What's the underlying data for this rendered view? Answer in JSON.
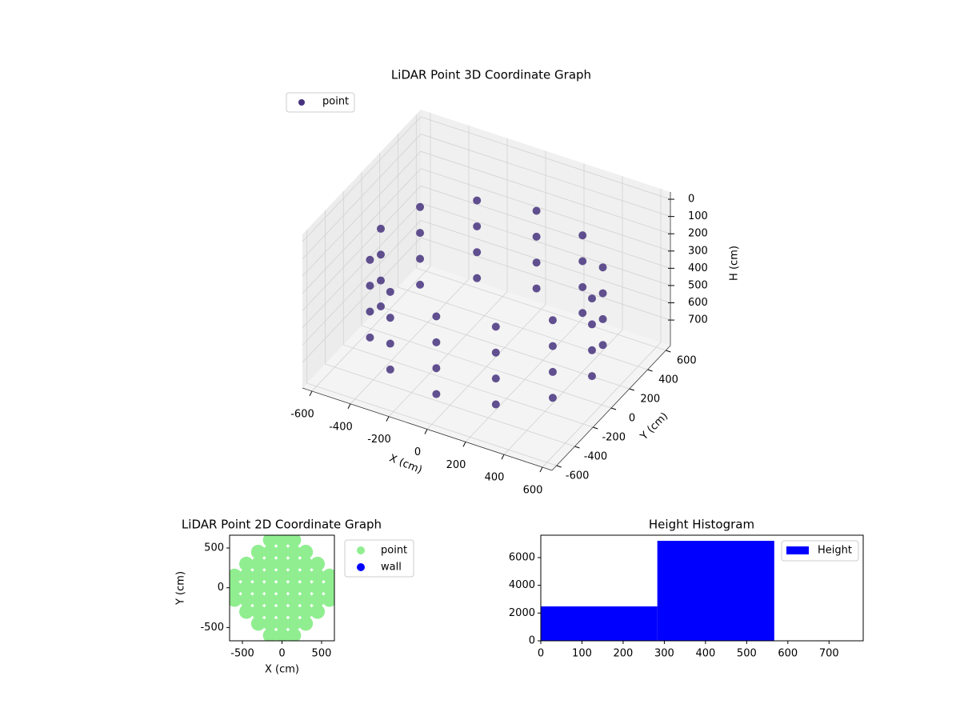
{
  "chart_data": [
    {
      "type": "scatter3d",
      "title": "LiDAR Point 3D Coordinate Graph",
      "xlabel": "X (cm)",
      "ylabel": "Y (cm)",
      "zlabel": "H (cm)",
      "xlim": [
        -650,
        650
      ],
      "ylim": [
        -650,
        650
      ],
      "zlim": [
        -42,
        848
      ],
      "zaxis_inverted": true,
      "xticks": [
        -600,
        -400,
        -200,
        0,
        200,
        400,
        600
      ],
      "yticks": [
        -600,
        -400,
        -200,
        0,
        200,
        400,
        600
      ],
      "zticks": [
        0,
        100,
        200,
        300,
        400,
        500,
        600,
        700
      ],
      "grid": true,
      "legend": "upper left",
      "series": [
        {
          "name": "point",
          "color": "#46327e",
          "x": [
            550,
            476,
            275,
            0,
            -275,
            -476,
            -550,
            -476,
            -275,
            0,
            275,
            476,
            550,
            476,
            275,
            0,
            -275,
            -476,
            -550,
            -476,
            -275,
            0,
            275,
            476,
            550,
            476,
            275,
            0,
            -275,
            -476,
            -550,
            -476,
            -275,
            0,
            275,
            476,
            550,
            476,
            275,
            0,
            -275,
            -476,
            -550,
            -476,
            -275,
            0,
            275,
            476
          ],
          "y": [
            0,
            275,
            476,
            550,
            476,
            275,
            0,
            -275,
            -476,
            -550,
            -476,
            -275,
            0,
            275,
            476,
            550,
            476,
            275,
            0,
            -275,
            -476,
            -550,
            -476,
            -275,
            0,
            275,
            476,
            550,
            476,
            275,
            0,
            -275,
            -476,
            -550,
            -476,
            -275,
            0,
            275,
            476,
            550,
            476,
            275,
            0,
            -275,
            -476,
            -550,
            -476,
            -275
          ],
          "z": [
            250,
            250,
            250,
            250,
            250,
            250,
            250,
            250,
            250,
            250,
            250,
            250,
            400,
            400,
            400,
            400,
            400,
            400,
            400,
            400,
            400,
            400,
            400,
            400,
            550,
            550,
            550,
            550,
            550,
            550,
            550,
            550,
            550,
            550,
            550,
            550,
            700,
            700,
            700,
            700,
            700,
            700,
            700,
            700,
            700,
            700,
            700,
            700
          ]
        }
      ]
    },
    {
      "type": "scatter",
      "title": "LiDAR Point 2D Coordinate Graph",
      "xlabel": "X (cm)",
      "ylabel": "Y (cm)",
      "xlim": [
        -662,
        662
      ],
      "ylim": [
        -667,
        661
      ],
      "xticks": [
        -500,
        0,
        500
      ],
      "yticks": [
        -500,
        0,
        500
      ],
      "legend": "outside right",
      "series": [
        {
          "name": "point",
          "color": "#90ee90",
          "x": [
            -600,
            -600,
            -600,
            -450,
            -450,
            -450,
            -450,
            -450,
            -300,
            -300,
            -300,
            -300,
            -300,
            -300,
            -300,
            -150,
            -150,
            -150,
            -150,
            -150,
            -150,
            -150,
            -150,
            -150,
            0,
            0,
            0,
            0,
            0,
            0,
            0,
            0,
            0,
            150,
            150,
            150,
            150,
            150,
            150,
            150,
            150,
            150,
            300,
            300,
            300,
            300,
            300,
            300,
            300,
            450,
            450,
            450,
            450,
            450,
            600,
            600,
            600
          ],
          "y": [
            -150,
            0,
            150,
            -300,
            -150,
            0,
            150,
            300,
            -450,
            -300,
            -150,
            0,
            150,
            300,
            450,
            -600,
            -450,
            -300,
            -150,
            0,
            150,
            300,
            450,
            600,
            -600,
            -450,
            -300,
            -150,
            0,
            150,
            300,
            450,
            600,
            -600,
            -450,
            -300,
            -150,
            0,
            150,
            300,
            450,
            600,
            -450,
            -300,
            -150,
            0,
            150,
            300,
            450,
            -300,
            -150,
            0,
            150,
            300,
            -150,
            0,
            150
          ]
        },
        {
          "name": "wall",
          "color": "#0000ff",
          "x": [],
          "y": []
        }
      ]
    },
    {
      "type": "histogram",
      "title": "Height Histogram",
      "bins": [
        0,
        283,
        567,
        850
      ],
      "xlim": [
        0,
        783
      ],
      "ylim": [
        0,
        7615
      ],
      "xticks": [
        0,
        100,
        200,
        300,
        400,
        500,
        600,
        700
      ],
      "yticks": [
        0,
        2000,
        4000,
        6000
      ],
      "legend": "upper right",
      "series": [
        {
          "name": "Height",
          "color": "#0000ff",
          "values": [
            2480,
            7210,
            0
          ]
        }
      ]
    }
  ]
}
